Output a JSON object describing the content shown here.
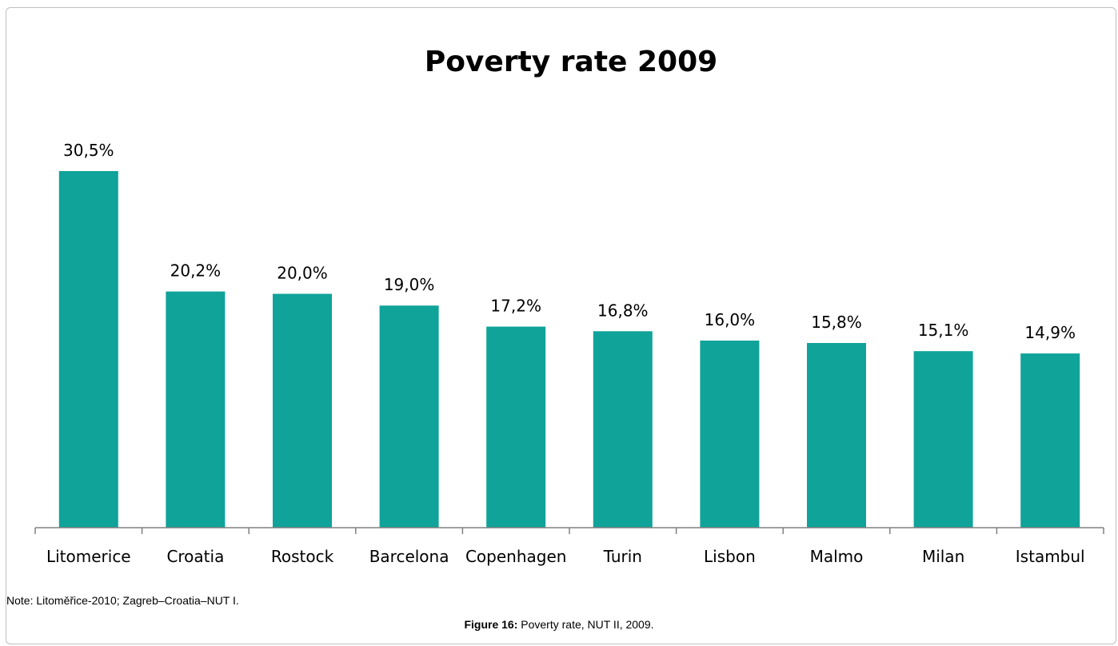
{
  "chart_data": {
    "type": "bar",
    "title": "Poverty rate 2009",
    "categories": [
      "Litomerice",
      "Croatia",
      "Rostock",
      "Barcelona",
      "Copenhagen",
      "Turin",
      "Lisbon",
      "Malmo",
      "Milan",
      "Istambul"
    ],
    "values": [
      30.5,
      20.2,
      20.0,
      19.0,
      17.2,
      16.8,
      16.0,
      15.8,
      15.1,
      14.9
    ],
    "value_labels": [
      "30,5%",
      "20,2%",
      "20,0%",
      "19,0%",
      "17,2%",
      "16,8%",
      "16,0%",
      "15,8%",
      "15,1%",
      "14,9%"
    ],
    "xlabel": "",
    "ylabel": "",
    "ylim": [
      0,
      30.5
    ],
    "grid": false,
    "legend": "none",
    "bar_color": "#10a39a"
  },
  "note": "Note: Litoměřice-2010; Zagreb–Croatia–NUT I.",
  "caption": {
    "label": "Figure 16:",
    "text": " Poverty rate, NUT II, 2009."
  }
}
